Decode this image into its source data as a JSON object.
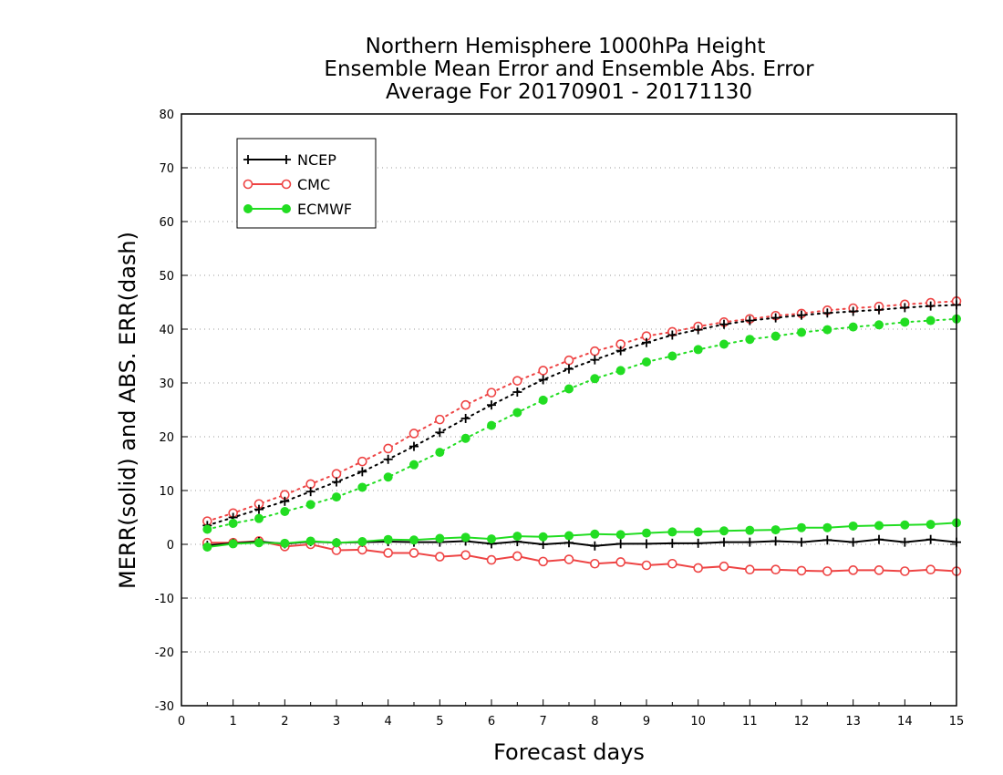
{
  "chart_data": {
    "type": "line",
    "title": [
      "Northern Hemisphere 1000hPa Height",
      "Ensemble Mean Error and Ensemble Abs. Error",
      "Average For 20170901 - 20171130"
    ],
    "xlabel": "Forecast days",
    "ylabel": "MERR(solid) and ABS. ERR(dash)",
    "xlim": [
      0,
      15
    ],
    "ylim": [
      -30,
      80
    ],
    "xticks": [
      0,
      1,
      2,
      3,
      4,
      5,
      6,
      7,
      8,
      9,
      10,
      11,
      12,
      13,
      14,
      15
    ],
    "yticks": [
      -30,
      -20,
      -10,
      0,
      10,
      20,
      30,
      40,
      50,
      60,
      70,
      80
    ],
    "grid": "horizontal dotted",
    "legend_position": "top-left",
    "x": [
      0.5,
      1,
      1.5,
      2,
      2.5,
      3,
      3.5,
      4,
      4.5,
      5,
      5.5,
      6,
      6.5,
      7,
      7.5,
      8,
      8.5,
      9,
      9.5,
      10,
      10.5,
      11,
      11.5,
      12,
      12.5,
      13,
      13.5,
      14,
      14.5,
      15
    ],
    "series": [
      {
        "name": "NCEP",
        "color": "#000000",
        "marker": "plus",
        "merr": [
          -0.2,
          0.2,
          0.5,
          0.1,
          0.5,
          0.3,
          0.4,
          0.5,
          0.4,
          0.4,
          0.6,
          0.1,
          0.5,
          0.0,
          0.3,
          -0.3,
          0.1,
          0.1,
          0.2,
          0.2,
          0.4,
          0.4,
          0.6,
          0.4,
          0.8,
          0.4,
          0.9,
          0.4,
          0.9,
          0.4
        ],
        "abs_err": [
          3.5,
          5.0,
          6.5,
          8.0,
          9.8,
          11.6,
          13.5,
          15.8,
          18.2,
          20.8,
          23.4,
          25.9,
          28.3,
          30.6,
          32.6,
          34.3,
          36.0,
          37.5,
          38.9,
          39.9,
          40.9,
          41.6,
          42.1,
          42.6,
          43.0,
          43.3,
          43.6,
          44.0,
          44.3,
          44.5
        ]
      },
      {
        "name": "CMC",
        "color": "#ee4444",
        "marker": "open-circle",
        "merr": [
          0.3,
          0.3,
          0.6,
          -0.4,
          0.0,
          -1.1,
          -1.0,
          -1.6,
          -1.6,
          -2.3,
          -2.0,
          -2.9,
          -2.2,
          -3.2,
          -2.8,
          -3.6,
          -3.3,
          -3.9,
          -3.6,
          -4.4,
          -4.1,
          -4.7,
          -4.7,
          -4.9,
          -5.0,
          -4.8,
          -4.8,
          -5.0,
          -4.7,
          -5.0
        ],
        "abs_err": [
          4.3,
          5.8,
          7.5,
          9.2,
          11.2,
          13.1,
          15.4,
          17.8,
          20.6,
          23.2,
          25.9,
          28.2,
          30.4,
          32.3,
          34.2,
          35.9,
          37.2,
          38.7,
          39.5,
          40.5,
          41.3,
          41.9,
          42.5,
          42.9,
          43.5,
          43.9,
          44.2,
          44.6,
          44.9,
          45.2
        ]
      },
      {
        "name": "ECMWF",
        "color": "#22dd22",
        "marker": "filled-circle",
        "merr": [
          -0.5,
          0.1,
          0.3,
          0.2,
          0.6,
          0.3,
          0.5,
          0.9,
          0.8,
          1.1,
          1.3,
          1.0,
          1.5,
          1.4,
          1.6,
          1.9,
          1.8,
          2.1,
          2.3,
          2.3,
          2.5,
          2.6,
          2.7,
          3.1,
          3.1,
          3.4,
          3.5,
          3.6,
          3.7,
          4.0
        ],
        "abs_err": [
          2.8,
          3.9,
          4.8,
          6.1,
          7.4,
          8.8,
          10.6,
          12.5,
          14.8,
          17.1,
          19.7,
          22.1,
          24.5,
          26.8,
          28.9,
          30.8,
          32.3,
          33.9,
          35.0,
          36.2,
          37.2,
          38.1,
          38.7,
          39.4,
          39.9,
          40.4,
          40.8,
          41.3,
          41.6,
          41.9
        ]
      }
    ]
  }
}
